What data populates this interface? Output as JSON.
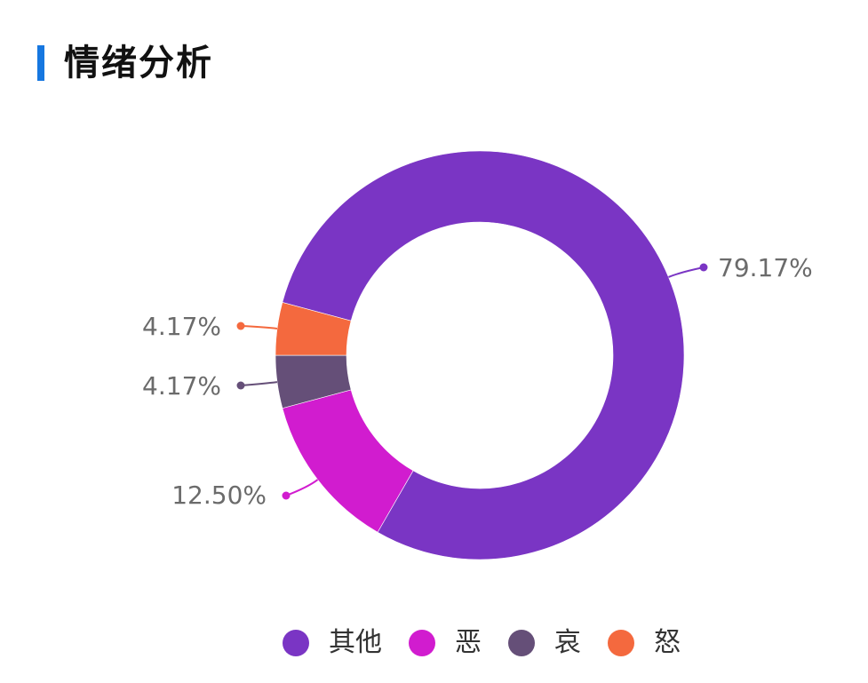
{
  "header": {
    "title": "情绪分析",
    "accent_color": "#1677e0"
  },
  "chart_data": {
    "type": "pie",
    "variant": "donut",
    "title": "情绪分析",
    "categories": [
      "其他",
      "恶",
      "哀",
      "怒"
    ],
    "values": [
      79.17,
      12.5,
      4.17,
      4.17
    ],
    "labels": [
      "79.17%",
      "12.50%",
      "4.17%",
      "4.17%"
    ],
    "colors": [
      "#7a35c4",
      "#d11ccf",
      "#654f78",
      "#f4693e"
    ],
    "legend_position": "bottom"
  },
  "legend": {
    "items": [
      {
        "label": "其他",
        "color": "#7a35c4"
      },
      {
        "label": "恶",
        "color": "#d11ccf"
      },
      {
        "label": "哀",
        "color": "#654f78"
      },
      {
        "label": "怒",
        "color": "#f4693e"
      }
    ]
  }
}
